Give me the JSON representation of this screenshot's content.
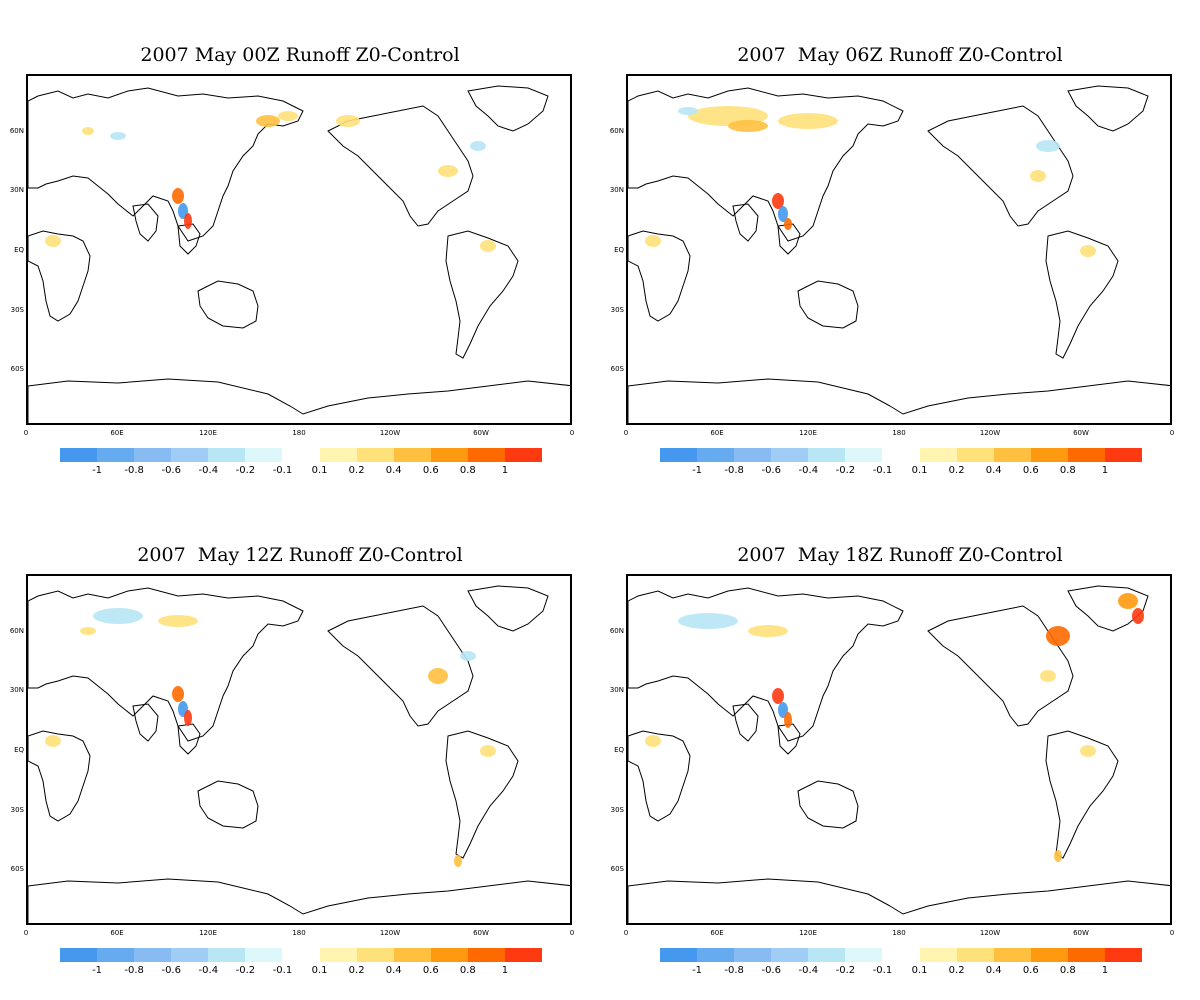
{
  "panels": [
    {
      "title": "2007 May 00Z Runoff Z0-Control"
    },
    {
      "title": "2007  May 06Z Runoff Z0-Control"
    },
    {
      "title": "2007  May 12Z Runoff Z0-Control"
    },
    {
      "title": "2007  May 18Z Runoff Z0-Control"
    }
  ],
  "lat_labels": [
    "60N",
    "30N",
    "EQ",
    "30S",
    "60S"
  ],
  "lon_labels": [
    "0",
    "60E",
    "120E",
    "180",
    "120W",
    "60W",
    "0"
  ],
  "colorbar": {
    "labels": [
      "-1",
      "-0.8",
      "-0.6",
      "-0.4",
      "-0.2",
      "-0.1",
      "0.1",
      "0.2",
      "0.4",
      "0.6",
      "0.8",
      "1"
    ],
    "colors": [
      "#4499ee",
      "#66aaf0",
      "#88bbf2",
      "#a0cdf5",
      "#b8e6f5",
      "#dcf8fa",
      "#ffffff",
      "#fff5b0",
      "#ffe17a",
      "#ffc040",
      "#ff9a10",
      "#ff6a00",
      "#ff3a10"
    ]
  },
  "map_colors": {
    "coast": "#000000",
    "background": "#ffffff"
  }
}
